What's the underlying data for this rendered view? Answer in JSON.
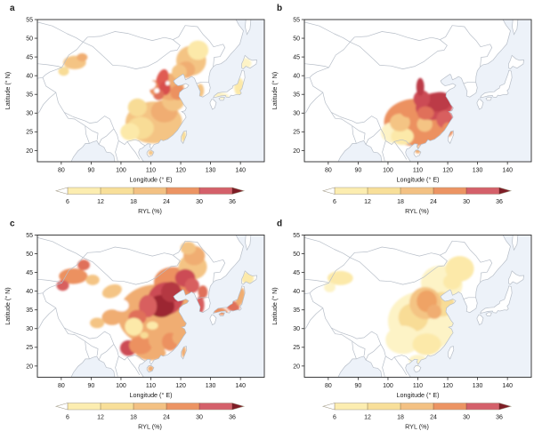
{
  "figure": {
    "type": "choropleth-map-grid",
    "background": "#ffffff",
    "map_colors": {
      "sea": "#edf2f9",
      "land": "#ffffff",
      "border": "#b7bec8",
      "frame": "#2b2b2b",
      "text": "#1a1a1a"
    },
    "axes": {
      "x_label": "Longitude (° E)",
      "y_label": "Latitude (° N)",
      "x_ticks": [
        80,
        90,
        100,
        110,
        120,
        130,
        140
      ],
      "y_ticks": [
        55,
        50,
        45,
        40,
        35,
        30,
        25,
        20
      ],
      "x_range": [
        72,
        148
      ],
      "y_range": [
        17,
        55
      ]
    },
    "colorbar": {
      "label": "RYL (%)",
      "ticks": [
        6,
        12,
        18,
        24,
        30,
        36
      ],
      "segment_colors": [
        "#fcedb0",
        "#f8df99",
        "#f3c183",
        "#ec9463",
        "#d4606a"
      ],
      "under_color": "#ffffff",
      "over_color": "#7e1d26",
      "outline": "#a09884",
      "tick_line_color": "rgba(70,50,35,0.55)"
    },
    "panels": [
      {
        "id": "a",
        "label": "a",
        "blobs": [
          [
            111,
            27.5,
            9.5,
            5.6,
            0,
            "#f4c484"
          ],
          [
            106.5,
            26,
            4.5,
            3,
            0,
            "#f8dc96"
          ],
          [
            103,
            25,
            3.2,
            2.3,
            0,
            "#fce9a9"
          ],
          [
            105.5,
            31.5,
            3.2,
            2.4,
            0,
            "#f8dc96"
          ],
          [
            114.5,
            30.5,
            4.5,
            3,
            0,
            "#f0ad72"
          ],
          [
            117.5,
            33.5,
            3.8,
            3,
            0,
            "#f4c484"
          ],
          [
            116.5,
            37,
            4.5,
            3.6,
            0,
            "#f0ad72"
          ],
          [
            119,
            35.5,
            2.5,
            2,
            0,
            "#ec9161"
          ],
          [
            113.8,
            38.8,
            2,
            3,
            15,
            "#e05c52"
          ],
          [
            114.8,
            36.6,
            1.8,
            1.8,
            0,
            "#d8504e"
          ],
          [
            112.6,
            34.9,
            1.8,
            1.4,
            0,
            "#e0705a"
          ],
          [
            111,
            36.8,
            1.5,
            2,
            0,
            "#ec9161"
          ],
          [
            123.5,
            44,
            5,
            4,
            20,
            "#f4c484"
          ],
          [
            125.8,
            46.8,
            3.5,
            2.6,
            0,
            "#fce9a9"
          ],
          [
            121.8,
            41.6,
            3,
            2.2,
            0,
            "#f0ad72"
          ],
          [
            119.5,
            41,
            2.5,
            2,
            0,
            "#f4c484"
          ],
          [
            84.5,
            43.5,
            3.8,
            1.8,
            0,
            "#f4c484"
          ],
          [
            80.8,
            41.2,
            1.8,
            1.2,
            0,
            "#f8dc96"
          ],
          [
            87,
            44.9,
            1.8,
            1.1,
            0,
            "#f0ad72"
          ],
          [
            126.5,
            36,
            1.3,
            1.8,
            0,
            "#f4c484"
          ],
          [
            133.5,
            34.7,
            2.8,
            0.9,
            12,
            "#fdf3c6"
          ],
          [
            139.6,
            37,
            1.7,
            2.4,
            0,
            "#fce9a9"
          ],
          [
            141.6,
            43.3,
            2.1,
            1.4,
            0,
            "#fdf3c6"
          ],
          [
            121,
            23.8,
            0.8,
            1.5,
            0,
            "#f8dc96"
          ],
          [
            110,
            19.4,
            0.9,
            0.7,
            0,
            "#f4c484"
          ],
          [
            109.8,
            37.4,
            1.9,
            1.1,
            -20,
            "#ffffff"
          ],
          [
            112,
            36,
            0.9,
            0.7,
            0,
            "#ffffff"
          ],
          [
            115.6,
            38,
            0.7,
            0.6,
            0,
            "#ffffff"
          ],
          [
            107.5,
            35.5,
            1.2,
            0.8,
            0,
            "#ffffff"
          ]
        ]
      },
      {
        "id": "b",
        "label": "b",
        "blobs": [
          [
            109,
            27.5,
            10.3,
            6.3,
            0,
            "#ec9161"
          ],
          [
            101.8,
            24.8,
            4.2,
            2.8,
            0,
            "#fdf3c6"
          ],
          [
            104.8,
            23.8,
            3.8,
            2.3,
            0,
            "#fce9a9"
          ],
          [
            104,
            27.5,
            3.4,
            2.4,
            0,
            "#f4c484"
          ],
          [
            112.3,
            27,
            2.6,
            2,
            0,
            "#f4c484"
          ],
          [
            107,
            30.8,
            3,
            2,
            0,
            "#ec9161"
          ],
          [
            115.5,
            31.8,
            6.3,
            3.6,
            -10,
            "#cc4b55"
          ],
          [
            117,
            33,
            4.3,
            2.6,
            -10,
            "#bc3b47"
          ],
          [
            111.3,
            33.8,
            2.8,
            2.3,
            0,
            "#cc4b55"
          ],
          [
            110.8,
            37,
            1.3,
            2.4,
            0,
            "#bc3b47"
          ],
          [
            112.6,
            30,
            2.8,
            1.8,
            0,
            "#e0705a"
          ],
          [
            119,
            28.3,
            2.8,
            2.4,
            0,
            "#d85f5e"
          ],
          [
            120,
            25.6,
            1.9,
            1.9,
            0,
            "#ec9161"
          ],
          [
            110,
            20.1,
            1.1,
            0.9,
            0,
            "#f0ad72"
          ]
        ]
      },
      {
        "id": "c",
        "label": "c",
        "blobs": [
          [
            112,
            33.5,
            13,
            8.3,
            0,
            "#f0ad72"
          ],
          [
            110,
            23.5,
            5,
            2,
            0,
            "#f0ad72"
          ],
          [
            118,
            42,
            7,
            4.4,
            10,
            "#ec9161"
          ],
          [
            124,
            46.5,
            4.8,
            3.4,
            0,
            "#f4c484"
          ],
          [
            124.5,
            49.5,
            3.6,
            2.6,
            0,
            "#f0ad72"
          ],
          [
            122.5,
            51.5,
            2.6,
            1.7,
            0,
            "#f4c484"
          ],
          [
            115,
            38,
            6,
            4.4,
            -15,
            "#cc4b55"
          ],
          [
            113.5,
            36,
            4.4,
            3,
            0,
            "#9c2733"
          ],
          [
            116.8,
            39.8,
            3.4,
            2.7,
            20,
            "#b53743"
          ],
          [
            121.5,
            43.5,
            3.4,
            2.4,
            0,
            "#cc4b55"
          ],
          [
            123.8,
            41.5,
            2.4,
            2,
            0,
            "#d85f5e"
          ],
          [
            109,
            36,
            3,
            3,
            0,
            "#d85f5e"
          ],
          [
            105.5,
            33,
            3,
            2,
            0,
            "#e0705a"
          ],
          [
            104.3,
            30.5,
            3,
            2.4,
            0,
            "#fce9a9"
          ],
          [
            102.5,
            24.8,
            2.8,
            2.1,
            0,
            "#cc4b55"
          ],
          [
            106.5,
            25.5,
            3.8,
            2.4,
            0,
            "#ec9161"
          ],
          [
            113,
            27,
            3.8,
            2.8,
            0,
            "#f0ad72"
          ],
          [
            116.5,
            26.5,
            2.8,
            2.4,
            0,
            "#ec9161"
          ],
          [
            119.6,
            27.6,
            2.4,
            1.9,
            0,
            "#f0ad72"
          ],
          [
            84,
            44,
            4.8,
            2.1,
            0,
            "#ec9161"
          ],
          [
            80.5,
            41.5,
            2.1,
            1.4,
            0,
            "#d85f5e"
          ],
          [
            87.5,
            47,
            2.1,
            1.4,
            0,
            "#e0705a"
          ],
          [
            90.5,
            43,
            2.3,
            1.4,
            0,
            "#f4c484"
          ],
          [
            97,
            40,
            3.4,
            1.7,
            -20,
            "#f4c484"
          ],
          [
            97,
            33,
            3.4,
            2.1,
            0,
            "#f0ad72"
          ],
          [
            92,
            31.5,
            2.4,
            1.4,
            0,
            "#f4c484"
          ],
          [
            126.5,
            36.3,
            1.4,
            2.3,
            0,
            "#d85f5e"
          ],
          [
            127.4,
            39.8,
            1.6,
            1.7,
            0,
            "#e0705a"
          ],
          [
            133,
            34.7,
            2.8,
            1,
            12,
            "#ec9161"
          ],
          [
            137.4,
            36,
            2.4,
            1.4,
            25,
            "#e0705a"
          ],
          [
            140,
            38.5,
            1.5,
            2.4,
            10,
            "#f0ad72"
          ],
          [
            142.4,
            43.5,
            2.1,
            1.7,
            0,
            "#fce9a9"
          ],
          [
            121,
            23.8,
            0.8,
            1.5,
            0,
            "#f0ad72"
          ],
          [
            110,
            19.3,
            1,
            0.8,
            0,
            "#f0ad72"
          ],
          [
            100.3,
            36.2,
            2.3,
            1.6,
            0,
            "#ffffff"
          ],
          [
            110.5,
            30.8,
            1.9,
            1.1,
            0,
            "#fce9a9"
          ],
          [
            107.8,
            28.2,
            1.4,
            0.9,
            0,
            "#f8dc96"
          ]
        ]
      },
      {
        "id": "d",
        "label": "d",
        "blobs": [
          [
            112,
            32,
            12,
            8,
            0,
            "#fdf3c6"
          ],
          [
            118,
            42,
            7,
            4.8,
            10,
            "#fdf3c6"
          ],
          [
            124,
            46,
            4.8,
            3.4,
            0,
            "#fce9a9"
          ],
          [
            84,
            43.5,
            4.3,
            1.9,
            0,
            "#fce9a9"
          ],
          [
            80.5,
            41,
            1.9,
            1.3,
            0,
            "#fdf3c6"
          ],
          [
            108.5,
            33,
            5,
            3.8,
            0,
            "#f8dc96"
          ],
          [
            118,
            36.5,
            4.3,
            3.3,
            0,
            "#f8dc96"
          ],
          [
            112.5,
            36.8,
            5.3,
            4.3,
            -10,
            "#f4c484"
          ],
          [
            113,
            37.3,
            3.4,
            2.9,
            0,
            "#efa365"
          ],
          [
            115.5,
            34.5,
            2.4,
            1.9,
            0,
            "#f0ad72"
          ],
          [
            121.5,
            42.5,
            3,
            2.1,
            0,
            "#fce9a9"
          ],
          [
            105,
            27,
            5.8,
            3.8,
            0,
            "#fdf3c6"
          ],
          [
            113,
            25.8,
            4.8,
            2.9,
            0,
            "#fce9a9"
          ],
          [
            110,
            21.5,
            3,
            1.5,
            0,
            "#fdf3c6"
          ]
        ]
      }
    ]
  }
}
